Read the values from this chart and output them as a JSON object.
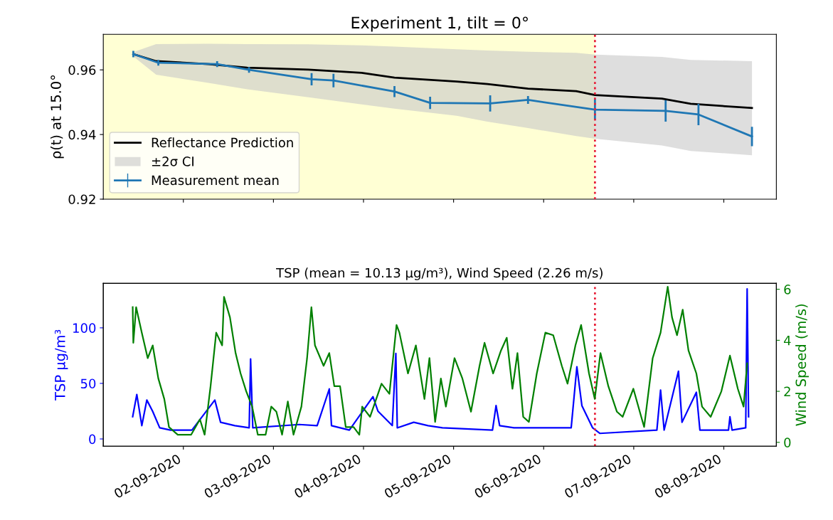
{
  "chart_data": [
    {
      "type": "line",
      "title": "Experiment 1, tilt = 0°",
      "ylabel": "ρ(t) at 15.0°",
      "xlim": [
        "2020-09-01T02:40",
        "2020-09-08T14:00"
      ],
      "ylim": [
        0.92,
        0.971
      ],
      "yticks": [
        0.92,
        0.94,
        0.96
      ],
      "xticks": [
        {
          "value": "2020-09-02",
          "label": null
        },
        {
          "value": "2020-09-03",
          "label": null
        },
        {
          "value": "2020-09-04",
          "label": null
        },
        {
          "value": "2020-09-05",
          "label": null
        },
        {
          "value": "2020-09-06",
          "label": null
        },
        {
          "value": "2020-09-07",
          "label": null
        },
        {
          "value": "2020-09-08",
          "label": null
        }
      ],
      "tick_labels": "y",
      "legend": "bottom left",
      "grid": false,
      "series": [
        {
          "name": "Reflectance Prediction",
          "type": "line",
          "color": "#000000",
          "x": [
            "2020-09-01T10:40",
            "2020-09-01T16:45",
            "2020-09-02T06:40",
            "2020-09-02T17:00",
            "2020-09-03T09:20",
            "2020-09-03T23:30",
            "2020-09-04T08:15",
            "2020-09-05T00:50",
            "2020-09-05T09:00",
            "2020-09-05T19:50",
            "2020-09-06T08:40",
            "2020-09-06T13:40",
            "2020-09-07T07:30",
            "2020-09-07T15:10",
            "2020-09-08T07:30"
          ],
          "values": [
            0.9649,
            0.9627,
            0.9618,
            0.9607,
            0.9601,
            0.9591,
            0.9576,
            0.9564,
            0.9556,
            0.9542,
            0.9534,
            0.9522,
            0.9511,
            0.9495,
            0.9482
          ]
        },
        {
          "name": "±2σ CI",
          "type": "area",
          "color": "#c8c8c8",
          "x": [
            "2020-09-01T10:40",
            "2020-09-01T16:45",
            "2020-09-02T06:40",
            "2020-09-02T17:00",
            "2020-09-03T09:20",
            "2020-09-03T23:30",
            "2020-09-04T08:15",
            "2020-09-05T00:50",
            "2020-09-05T09:00",
            "2020-09-05T19:50",
            "2020-09-06T08:40",
            "2020-09-06T13:40",
            "2020-09-07T07:30",
            "2020-09-07T15:10",
            "2020-09-08T07:30"
          ],
          "values": [
            null,
            null,
            null,
            null,
            null,
            null,
            null,
            null,
            null,
            null,
            null,
            null,
            null,
            null,
            null
          ],
          "lower": [
            0.9642,
            0.9585,
            0.956,
            0.954,
            0.9515,
            0.9493,
            0.948,
            0.9458,
            0.944,
            0.942,
            0.9395,
            0.9387,
            0.9366,
            0.9349,
            0.9336
          ],
          "upper": [
            0.9655,
            0.968,
            0.9681,
            0.968,
            0.9679,
            0.9676,
            0.9672,
            0.9664,
            0.966,
            0.9656,
            0.9653,
            0.9647,
            0.964,
            0.9631,
            0.9627
          ]
        },
        {
          "name": "Measurement mean",
          "type": "line",
          "color": "#1f77b4",
          "x": [
            "2020-09-01T10:40",
            "2020-09-01T17:20",
            "2020-09-02T09:00",
            "2020-09-02T17:30",
            "2020-09-03T10:10",
            "2020-09-03T16:00",
            "2020-09-04T08:15",
            "2020-09-04T17:45",
            "2020-09-05T09:45",
            "2020-09-05T19:50",
            "2020-09-06T13:40",
            "2020-09-07T08:30",
            "2020-09-07T17:15",
            "2020-09-08T07:30"
          ],
          "values": [
            0.9649,
            0.9622,
            0.9618,
            0.96,
            0.9571,
            0.9567,
            0.9533,
            0.9498,
            0.9496,
            0.9507,
            0.9477,
            0.9473,
            0.9462,
            0.9394
          ],
          "errors": [
            0.001,
            0.0009,
            0.0009,
            0.0009,
            0.0019,
            0.0021,
            0.0017,
            0.0019,
            0.0025,
            0.0012,
            0.0033,
            0.0033,
            0.0033,
            0.003
          ]
        }
      ],
      "ref_lines": [
        {
          "axis": "x",
          "value": "2020-09-06T13:40",
          "color": "#e8213a",
          "line_style": "dotted"
        }
      ],
      "bands": [
        {
          "axis": "x",
          "from": "2020-09-01T02:40",
          "to": "2020-09-06T13:40",
          "color": "#ffff00"
        }
      ]
    },
    {
      "type": "line",
      "title": "TSP (mean = 10.13 μg/m³), Wind Speed (2.26 m/s)",
      "ylabel": "TSP μg/m³",
      "y2label": "Wind Speed (m/s)",
      "xlim": [
        "2020-09-01T02:40",
        "2020-09-08T14:00"
      ],
      "ylim": [
        -6.5,
        140
      ],
      "yticks": [
        0,
        50,
        100
      ],
      "y2lim": [
        -0.15,
        6.23
      ],
      "y2ticks": [
        0,
        2,
        4,
        6
      ],
      "xticks": [
        {
          "value": "2020-09-02",
          "label": "02-09-2020"
        },
        {
          "value": "2020-09-03",
          "label": "03-09-2020"
        },
        {
          "value": "2020-09-04",
          "label": "04-09-2020"
        },
        {
          "value": "2020-09-05",
          "label": "05-09-2020"
        },
        {
          "value": "2020-09-06",
          "label": "06-09-2020"
        },
        {
          "value": "2020-09-07",
          "label": "07-09-2020"
        },
        {
          "value": "2020-09-08",
          "label": "08-09-2020"
        }
      ],
      "grid": false,
      "legend": false,
      "series": [
        {
          "type": "line",
          "color": "#0000ff",
          "x": [
            "2020-09-01T10:30",
            "2020-09-01T11:36",
            "2020-09-01T12:56",
            "2020-09-01T14:16",
            "2020-09-01T15:48",
            "2020-09-01T17:42",
            "2020-09-01T20:34",
            "2020-09-02T02:17",
            "2020-09-02T08:23",
            "2020-09-02T09:55",
            "2020-09-02T13:44",
            "2020-09-02T17:32",
            "2020-09-02T17:55",
            "2020-09-02T18:30",
            "2020-09-03T06:53",
            "2020-09-03T11:39",
            "2020-09-03T14:53",
            "2020-09-03T15:28",
            "2020-09-03T20:14",
            "2020-09-04T02:31",
            "2020-09-04T03:51",
            "2020-09-04T07:40",
            "2020-09-04T08:37",
            "2020-09-04T09:00",
            "2020-09-04T13:23",
            "2020-09-04T17:12",
            "2020-09-04T21:01",
            "2020-09-05T10:22",
            "2020-09-05T11:19",
            "2020-09-05T12:16",
            "2020-09-05T16:05",
            "2020-09-06T07:20",
            "2020-09-06T08:51",
            "2020-09-06T10:11",
            "2020-09-06T13:03",
            "2020-09-06T14:57",
            "2020-09-07T06:10",
            "2020-09-07T07:09",
            "2020-09-07T08:06",
            "2020-09-07T11:55",
            "2020-09-07T12:52",
            "2020-09-07T16:41",
            "2020-09-07T17:38",
            "2020-09-08T01:15",
            "2020-09-08T01:38",
            "2020-09-08T02:12",
            "2020-09-08T05:50",
            "2020-09-08T06:13",
            "2020-09-08T06:36"
          ],
          "values": [
            20,
            40,
            12,
            35,
            25,
            10,
            8,
            8,
            35,
            15,
            12,
            10,
            72,
            10,
            13,
            12,
            45,
            12,
            8,
            38,
            25,
            12,
            77,
            10,
            15,
            12,
            10,
            8,
            30,
            12,
            10,
            10,
            65,
            30,
            10,
            5,
            8,
            44,
            8,
            61,
            15,
            42,
            8,
            8,
            20,
            8,
            10,
            135,
            20
          ]
        },
        {
          "type": "line",
          "axis": "y2",
          "color": "#008000",
          "x": [
            "2020-09-01T10:30",
            "2020-09-01T10:40",
            "2020-09-01T11:25",
            "2020-09-01T12:55",
            "2020-09-01T14:30",
            "2020-09-01T15:50",
            "2020-09-01T17:20",
            "2020-09-01T18:55",
            "2020-09-01T20:10",
            "2020-09-01T22:30",
            "2020-09-02T02:05",
            "2020-09-02T04:25",
            "2020-09-02T05:40",
            "2020-09-02T07:15",
            "2020-09-02T08:45",
            "2020-09-02T10:20",
            "2020-09-02T10:50",
            "2020-09-02T12:25",
            "2020-09-02T13:55",
            "2020-09-02T15:15",
            "2020-09-02T16:45",
            "2020-09-02T18:20",
            "2020-09-02T19:50",
            "2020-09-02T21:55",
            "2020-09-02T23:25",
            "2020-09-03T00:47",
            "2020-09-03T02:18",
            "2020-09-03T03:50",
            "2020-09-03T05:21",
            "2020-09-03T07:27",
            "2020-09-03T08:58",
            "2020-09-03T10:07",
            "2020-09-03T11:04",
            "2020-09-03T13:22",
            "2020-09-03T14:53",
            "2020-09-03T16:13",
            "2020-09-03T17:45",
            "2020-09-03T19:16",
            "2020-09-03T21:22",
            "2020-09-03T22:53",
            "2020-09-03T23:39",
            "2020-09-04T01:45",
            "2020-09-04T04:48",
            "2020-09-04T06:54",
            "2020-09-04T08:48",
            "2020-09-04T09:34",
            "2020-09-04T11:51",
            "2020-09-04T13:57",
            "2020-09-04T16:14",
            "2020-09-04T17:34",
            "2020-09-04T19:05",
            "2020-09-04T20:37",
            "2020-09-04T21:57",
            "2020-09-05T00:15",
            "2020-09-05T02:21",
            "2020-09-05T04:38",
            "2020-09-05T06:55",
            "2020-09-05T08:15",
            "2020-09-05T10:32",
            "2020-09-05T12:38",
            "2020-09-05T14:10",
            "2020-09-05T15:41",
            "2020-09-05T17:01",
            "2020-09-05T18:33",
            "2020-09-05T20:04",
            "2020-09-05T22:10",
            "2020-09-06T00:27",
            "2020-09-06T02:33",
            "2020-09-06T04:50",
            "2020-09-06T06:22",
            "2020-09-06T08:28",
            "2020-09-06T09:59",
            "2020-09-06T12:05",
            "2020-09-06T13:37",
            "2020-09-06T15:08",
            "2020-09-06T17:14",
            "2020-09-06T19:31",
            "2020-09-06T21:03",
            "2020-09-06T23:54",
            "2020-09-07T02:00",
            "2020-09-07T02:46",
            "2020-09-07T05:03",
            "2020-09-07T07:09",
            "2020-09-07T09:03",
            "2020-09-07T10:12",
            "2020-09-07T11:32",
            "2020-09-07T13:03",
            "2020-09-07T14:35",
            "2020-09-07T16:41",
            "2020-09-07T18:12",
            "2020-09-07T20:30",
            "2020-09-07T23:21",
            "2020-09-08T01:38",
            "2020-09-08T03:44",
            "2020-09-08T05:16",
            "2020-09-08T06:13"
          ],
          "values": [
            5.3,
            3.9,
            5.3,
            4.3,
            3.3,
            3.8,
            2.5,
            1.7,
            0.6,
            0.3,
            0.3,
            0.9,
            0.3,
            2.2,
            4.3,
            3.8,
            5.7,
            4.9,
            3.5,
            2.7,
            2.0,
            1.4,
            0.3,
            0.3,
            1.4,
            1.2,
            0.3,
            1.6,
            0.3,
            1.4,
            3.3,
            5.3,
            3.8,
            3.0,
            3.5,
            2.2,
            2.2,
            0.6,
            0.6,
            0.3,
            1.4,
            1.0,
            2.3,
            1.9,
            4.6,
            4.3,
            2.7,
            3.8,
            1.7,
            3.3,
            0.8,
            2.5,
            1.4,
            3.3,
            2.5,
            1.2,
            3.0,
            3.9,
            2.7,
            3.6,
            4.1,
            2.1,
            3.5,
            1.0,
            0.8,
            2.7,
            4.3,
            4.2,
            3.0,
            2.3,
            3.8,
            4.6,
            2.7,
            1.7,
            3.5,
            2.2,
            1.2,
            1.0,
            2.1,
            1.0,
            0.6,
            3.3,
            4.3,
            6.1,
            4.9,
            4.2,
            5.2,
            3.6,
            2.7,
            1.4,
            1.0,
            2.0,
            3.4,
            2.1,
            1.4,
            3.1
          ]
        }
      ],
      "ref_lines": [
        {
          "axis": "x",
          "value": "2020-09-06T13:40",
          "color": "#e8213a",
          "line_style": "dotted"
        }
      ]
    }
  ]
}
